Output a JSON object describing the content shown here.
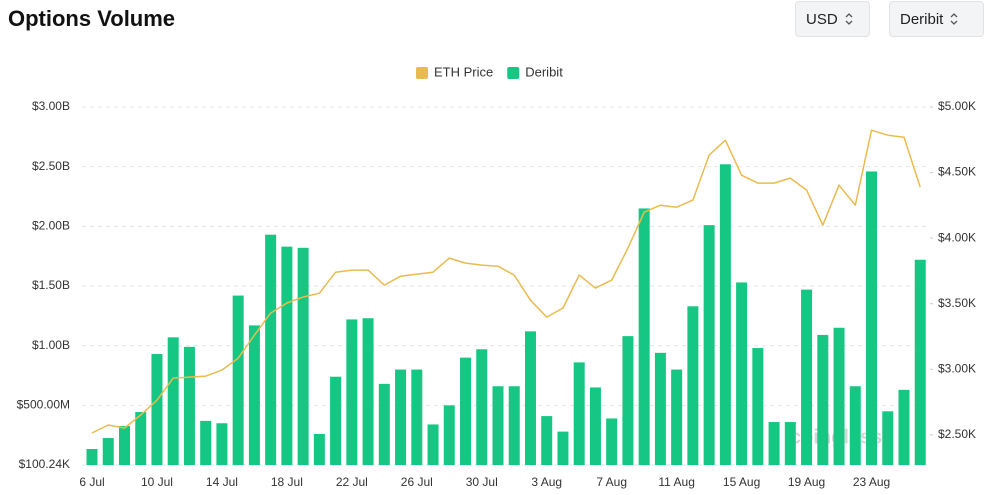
{
  "header": {
    "title": "Options Volume",
    "currency": "USD",
    "exchange": "Deribit"
  },
  "chart_data": {
    "type": "bar_line",
    "watermark": "coinglass",
    "categories": [
      "6 Jul",
      null,
      null,
      null,
      "10 Jul",
      null,
      null,
      null,
      "14 Jul",
      null,
      null,
      null,
      "18 Jul",
      null,
      null,
      null,
      "22 Jul",
      null,
      null,
      null,
      "26 Jul",
      null,
      null,
      null,
      "30 Jul",
      null,
      null,
      null,
      "3 Aug",
      null,
      null,
      null,
      "7 Aug",
      null,
      null,
      null,
      "11 Aug",
      null,
      null,
      null,
      "15 Aug",
      null,
      null,
      null,
      "19 Aug",
      null,
      null,
      null,
      "23 Aug",
      null,
      null,
      null
    ],
    "series": [
      {
        "name": "ETH Price",
        "color": "#e9bb4f",
        "axis": "y2",
        "kind": "line",
        "values": [
          2514,
          2575,
          2552,
          2651,
          2765,
          2933,
          2940,
          2948,
          2994,
          3085,
          3260,
          3428,
          3505,
          3550,
          3580,
          3740,
          3756,
          3756,
          3642,
          3710,
          3726,
          3740,
          3848,
          3810,
          3794,
          3786,
          3718,
          3527,
          3398,
          3467,
          3718,
          3619,
          3680,
          3924,
          4198,
          4251,
          4236,
          4290,
          4633,
          4747,
          4480,
          4420,
          4420,
          4458,
          4366,
          4099,
          4404,
          4251,
          4823,
          4785,
          4770,
          4389
        ]
      },
      {
        "name": "Deribit",
        "color": "#16c784",
        "kind": "bar",
        "values": [
          134000000,
          226000000,
          327000000,
          444000000,
          930000000,
          1070000000,
          990000000,
          370000000,
          350000000,
          1420000000,
          1170000000,
          1930000000,
          1830000000,
          1820000000,
          260000000,
          740000000,
          1220000000,
          1230000000,
          680000000,
          800000000,
          800000000,
          340000000,
          500000000,
          900000000,
          970000000,
          660000000,
          660000000,
          1120000000,
          410000000,
          280000000,
          860000000,
          650000000,
          390000000,
          1080000000,
          2150000000,
          940000000,
          800000000,
          1330000000,
          2010000000,
          2520000000,
          1530000000,
          980000000,
          360000000,
          360000000,
          1470000000,
          1090000000,
          1150000000,
          660000000,
          2460000000,
          450000000,
          630000000,
          1720000000
        ]
      }
    ],
    "ylim": [
      100240,
      3000000000
    ],
    "yticks": [
      {
        "value": 3000000000,
        "label": "$3.00B"
      },
      {
        "value": 2500000000,
        "label": "$2.50B"
      },
      {
        "value": 2000000000,
        "label": "$2.00B"
      },
      {
        "value": 1500000000,
        "label": "$1.50B"
      },
      {
        "value": 1000000000,
        "label": "$1.00B"
      },
      {
        "value": 500000000,
        "label": "$500.00M"
      },
      {
        "value": 100240,
        "label": "$100.24K"
      }
    ],
    "y2lim": [
      2270,
      5000
    ],
    "y2ticks": [
      {
        "value": 5000,
        "label": "$5.00K"
      },
      {
        "value": 4500,
        "label": "$4.50K"
      },
      {
        "value": 4000,
        "label": "$4.00K"
      },
      {
        "value": 3500,
        "label": "$3.50K"
      },
      {
        "value": 3000,
        "label": "$3.00K"
      },
      {
        "value": 2500,
        "label": "$2.50K"
      }
    ],
    "grid": true,
    "legend": "top"
  }
}
